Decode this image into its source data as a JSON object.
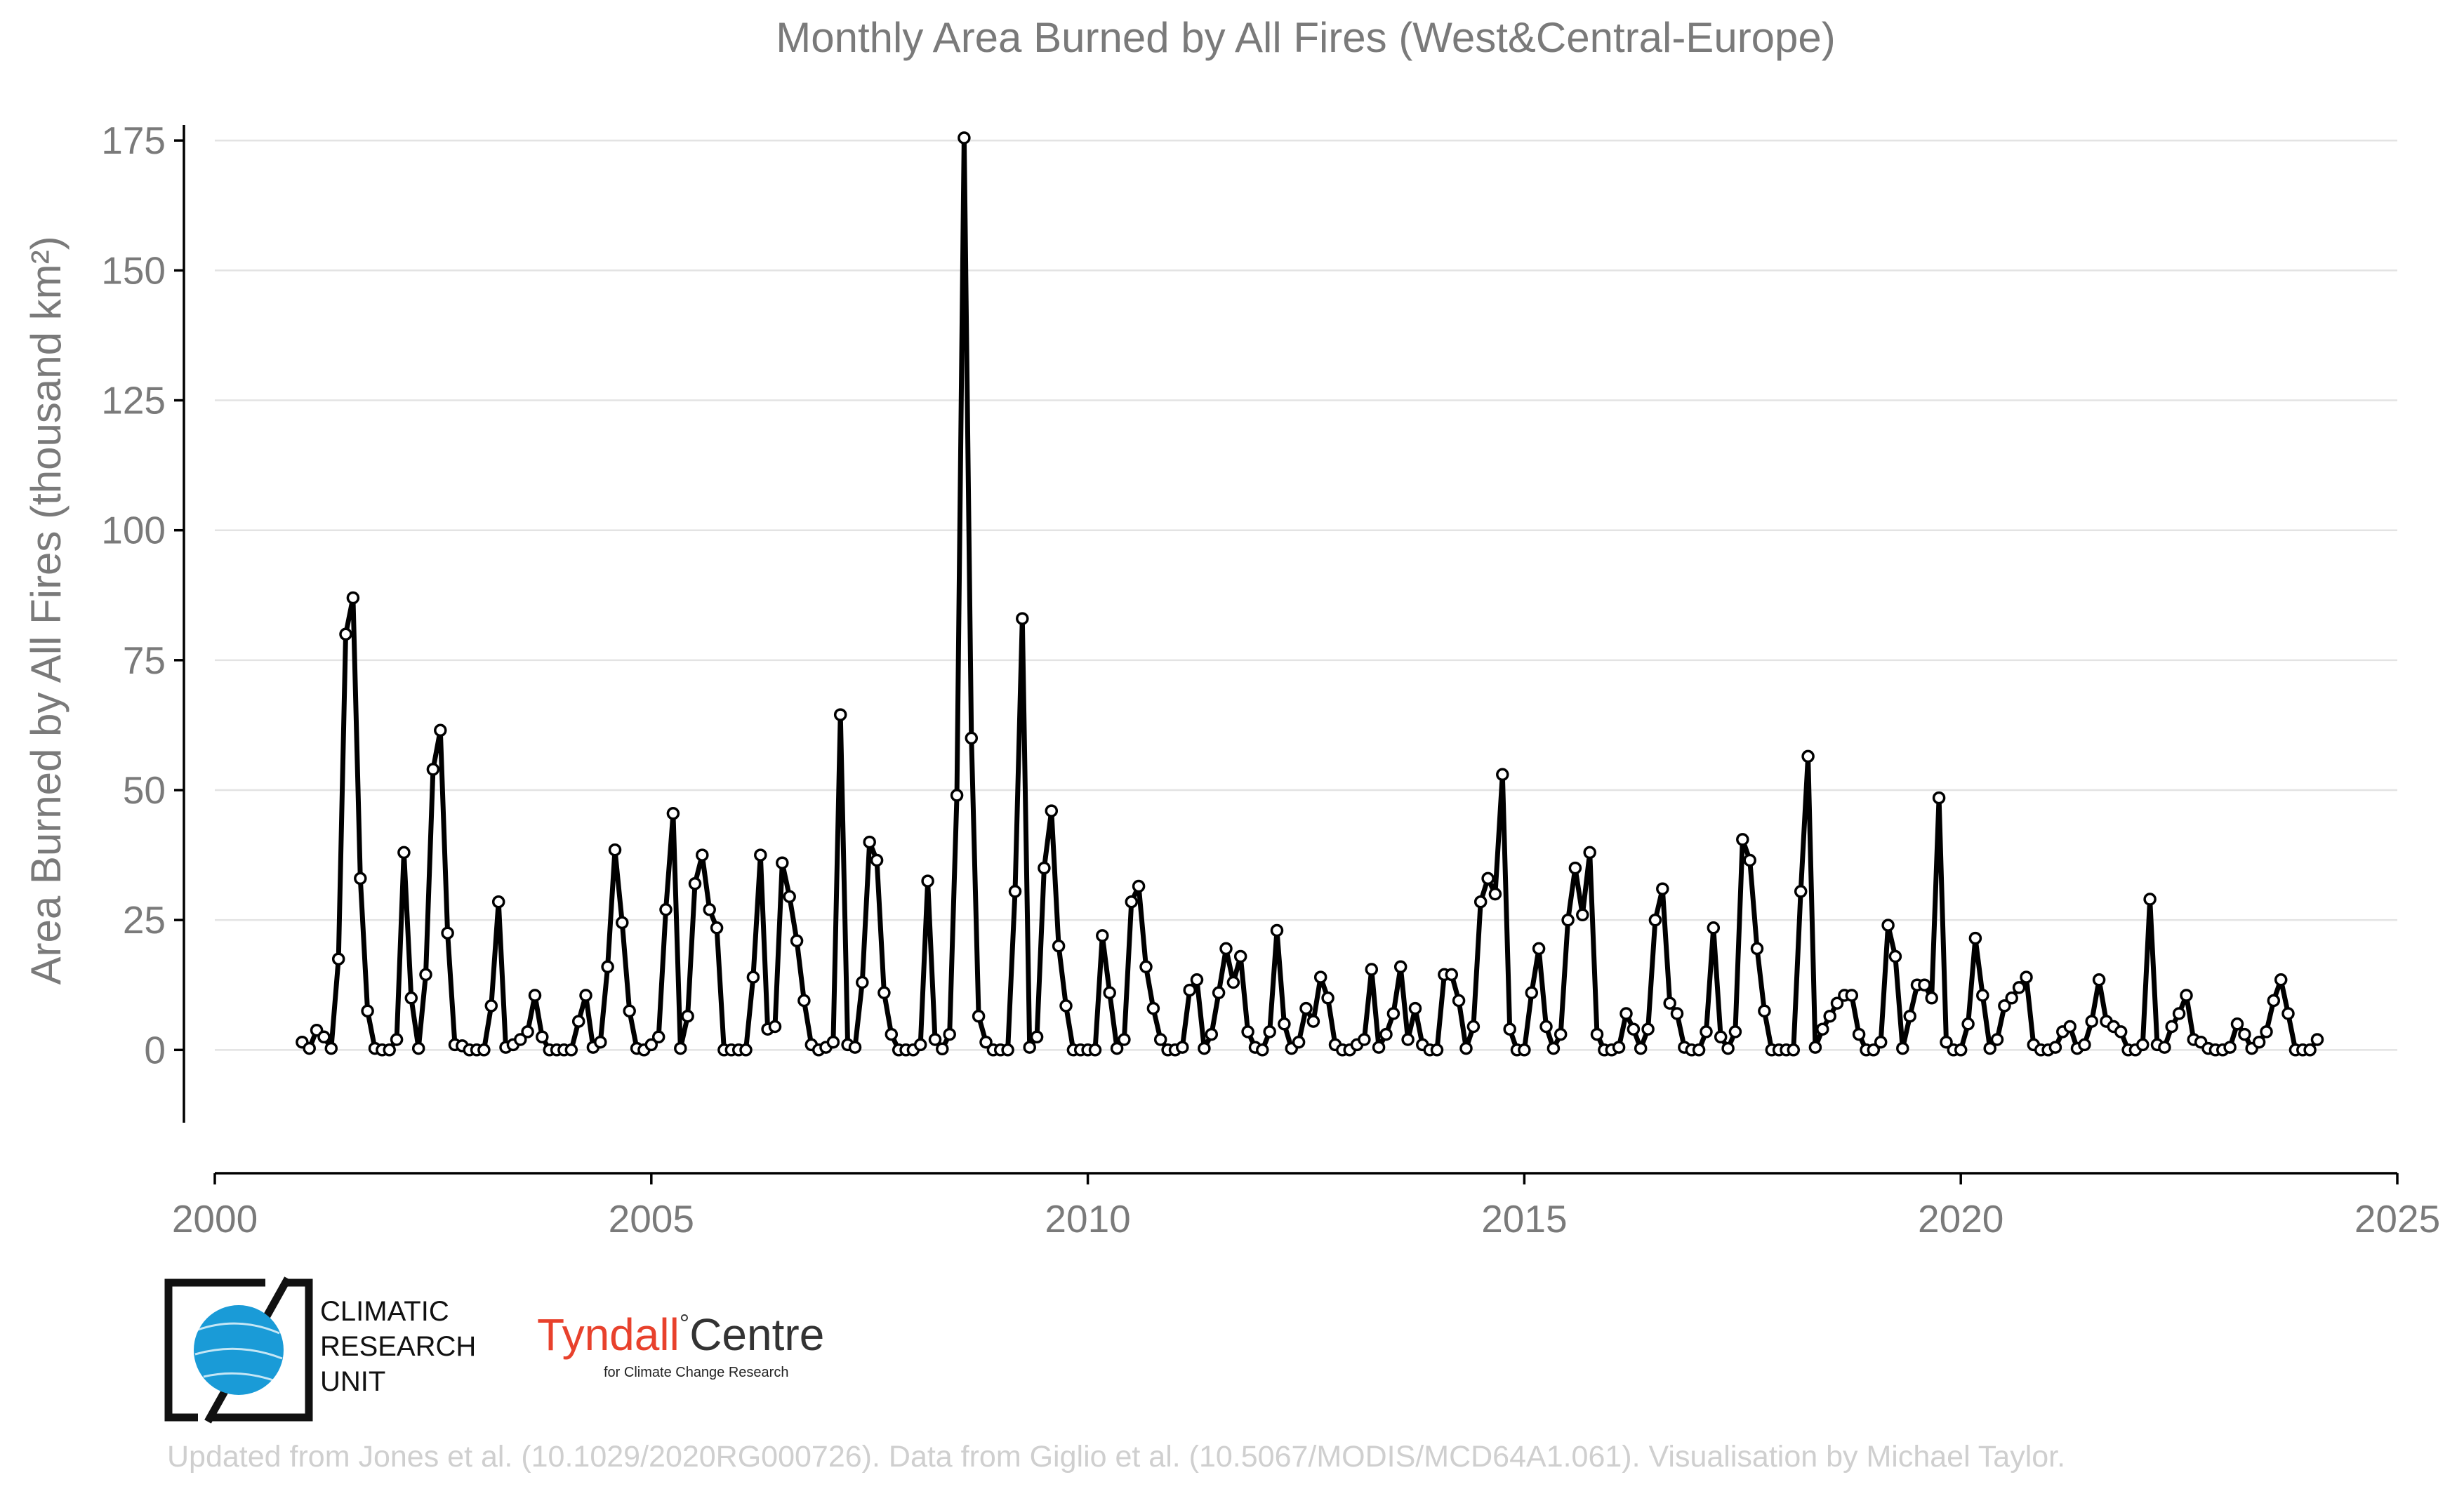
{
  "chart_data": {
    "type": "line",
    "title": "Monthly Area Burned by All Fires (West&Central-Europe)",
    "ylabel": "Area Burned by All Fires (thousand km²)",
    "xlabel": "",
    "xlim": [
      2000,
      2025
    ],
    "ylim": [
      -14,
      178
    ],
    "x_ticks": [
      2000,
      2005,
      2010,
      2015,
      2020,
      2025
    ],
    "y_ticks": [
      0,
      25,
      50,
      75,
      100,
      125,
      150,
      175
    ],
    "grid": "horizontal",
    "line_color": "#000000",
    "marker": "open-circle",
    "x_start": 2001.0,
    "x_step_months": 1,
    "series": [
      {
        "values": [
          1.5,
          0.3,
          3.8,
          2.5,
          0.3,
          17.5,
          80,
          87,
          33,
          7.5,
          0.3,
          0,
          0,
          2,
          38,
          10,
          0.3,
          14.5,
          54,
          61.5,
          22.5,
          1,
          0.8,
          0,
          0,
          0,
          8.5,
          28.5,
          0.5,
          1,
          2,
          3.5,
          10.5,
          2.5,
          0,
          0,
          0,
          0,
          5.5,
          10.5,
          0.5,
          1.5,
          16,
          38.5,
          24.5,
          7.5,
          0.3,
          0,
          1,
          2.5,
          27,
          45.5,
          0.3,
          6.5,
          32,
          37.5,
          27,
          23.5,
          0,
          0,
          0,
          0,
          14,
          37.5,
          4,
          4.5,
          36,
          29.5,
          21,
          9.5,
          1,
          0,
          0.5,
          1.5,
          64.5,
          1,
          0.5,
          13,
          40,
          36.5,
          11,
          3,
          0,
          0,
          0,
          1,
          32.5,
          2,
          0.2,
          3,
          49,
          175.5,
          60,
          6.5,
          1.5,
          0,
          0,
          0,
          30.5,
          83,
          0.5,
          2.5,
          35,
          46,
          20,
          8.5,
          0,
          0,
          0,
          0,
          22,
          11,
          0.3,
          2,
          28.5,
          31.5,
          16,
          8,
          2,
          0,
          0,
          0.5,
          11.5,
          13.5,
          0.3,
          3,
          11,
          19.5,
          13,
          18,
          3.5,
          0.5,
          0,
          3.5,
          23,
          5,
          0.3,
          1.5,
          8,
          5.5,
          14,
          10,
          1,
          0,
          0,
          1,
          2,
          15.5,
          0.5,
          3,
          7,
          16,
          2,
          8,
          1,
          0,
          0,
          14.5,
          14.5,
          9.5,
          0.3,
          4.5,
          28.5,
          33,
          30,
          53,
          4,
          0,
          0,
          11,
          19.5,
          4.5,
          0.3,
          3,
          25,
          35,
          26,
          38,
          3,
          0,
          0,
          0.5,
          7,
          4,
          0.3,
          4,
          25,
          31,
          9,
          7,
          0.5,
          0,
          0,
          3.5,
          23.5,
          2.5,
          0.3,
          3.5,
          40.5,
          36.5,
          19.5,
          7.5,
          0,
          0,
          0,
          0,
          30.5,
          56.5,
          0.5,
          4,
          6.5,
          9,
          10.5,
          10.5,
          3,
          0,
          0,
          1.5,
          24,
          18,
          0.3,
          6.5,
          12.5,
          12.5,
          10,
          48.5,
          1.5,
          0,
          0,
          5,
          21.5,
          10.5,
          0.3,
          2,
          8.5,
          10,
          12,
          14,
          1,
          0,
          0,
          0.5,
          3.5,
          4.5,
          0.3,
          1,
          5.5,
          13.5,
          5.5,
          4.5,
          3.5,
          0,
          0,
          1,
          29,
          1,
          0.5,
          4.5,
          7,
          10.5,
          2,
          1.5,
          0.3,
          0,
          0,
          0.5,
          5,
          3,
          0.3,
          1.5,
          3.5,
          9.5,
          13.5,
          7,
          0,
          0,
          0,
          2
        ]
      }
    ]
  },
  "logos": {
    "cru": {
      "line1": "CLIMATIC",
      "line2": "RESEARCH",
      "line3": "UNIT",
      "globe_color": "#1a9bd7"
    },
    "tyndall": {
      "name_a": "Tyndall",
      "degree": "°",
      "name_b": "Centre",
      "sub": "for Climate Change Research",
      "color_a": "#e8412c",
      "color_b": "#333333"
    }
  },
  "credit": "Updated from Jones et al. (10.1029/2020RG000726). Data from Giglio et al. (10.5067/MODIS/MCD64A1.061). Visualisation by Michael Taylor."
}
